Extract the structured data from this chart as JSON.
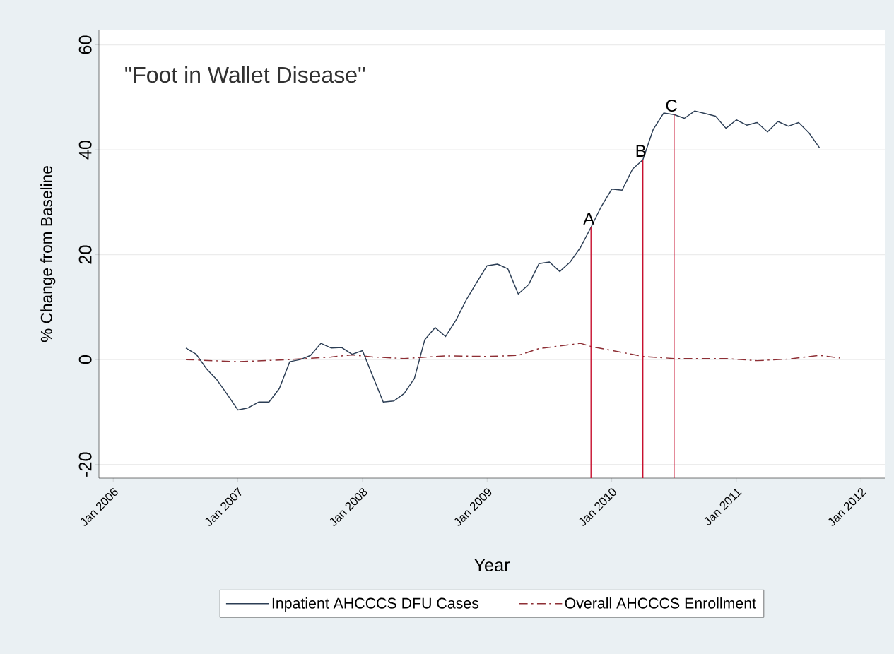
{
  "chart_data": {
    "type": "line",
    "xlabel": "Year",
    "ylabel": "% Change from Baseline",
    "xlim": [
      "2005-11-20",
      "2012-03-10"
    ],
    "ylim": [
      -22.6,
      62.9
    ],
    "xticks": [
      {
        "value": "2006-01",
        "label": "Jan 2006"
      },
      {
        "value": "2007-01",
        "label": "Jan 2007"
      },
      {
        "value": "2008-01",
        "label": "Jan 2008"
      },
      {
        "value": "2009-01",
        "label": "Jan 2009"
      },
      {
        "value": "2010-01",
        "label": "Jan 2010"
      },
      {
        "value": "2011-01",
        "label": "Jan 2011"
      },
      {
        "value": "2012-01",
        "label": "Jan 2012"
      }
    ],
    "yticks": [
      -20,
      0,
      20,
      40,
      60
    ],
    "grid": "y",
    "legend": "bottom",
    "marker": "none",
    "series": [
      {
        "name": "Inpatient AHCCCS DFU Cases",
        "color": "#2c3e55",
        "line_style": "solid",
        "x": [
          "2006-08",
          "2006-09",
          "2006-10",
          "2006-11",
          "2006-12",
          "2007-01",
          "2007-02",
          "2007-03",
          "2007-04",
          "2007-05",
          "2007-06",
          "2007-07",
          "2007-08",
          "2007-09",
          "2007-10",
          "2007-11",
          "2007-12",
          "2008-01",
          "2008-02",
          "2008-03",
          "2008-04",
          "2008-05",
          "2008-06",
          "2008-07",
          "2008-08",
          "2008-09",
          "2008-10",
          "2008-11",
          "2008-12",
          "2009-01",
          "2009-02",
          "2009-03",
          "2009-04",
          "2009-05",
          "2009-06",
          "2009-07",
          "2009-08",
          "2009-09",
          "2009-10",
          "2009-11",
          "2009-12",
          "2010-01",
          "2010-02",
          "2010-03",
          "2010-04",
          "2010-05",
          "2010-06",
          "2010-07",
          "2010-08",
          "2010-09",
          "2010-10",
          "2010-11",
          "2010-12",
          "2011-01",
          "2011-02",
          "2011-03",
          "2011-04",
          "2011-05",
          "2011-06",
          "2011-07",
          "2011-08",
          "2011-09"
        ],
        "values": [
          2.2,
          1.0,
          -1.8,
          -3.9,
          -6.7,
          -9.6,
          -9.2,
          -8.1,
          -8.1,
          -5.5,
          -0.4,
          0.0,
          0.8,
          3.1,
          2.2,
          2.3,
          1.0,
          1.7,
          -3.2,
          -8.1,
          -7.9,
          -6.5,
          -3.6,
          3.8,
          6.1,
          4.4,
          7.5,
          11.4,
          14.7,
          17.9,
          18.2,
          17.3,
          12.5,
          14.3,
          18.3,
          18.6,
          16.8,
          18.6,
          21.4,
          25.2,
          29.2,
          32.5,
          32.3,
          36.3,
          38.1,
          43.9,
          47.0,
          46.7,
          46.0,
          47.4,
          46.9,
          46.4,
          44.1,
          45.7,
          44.7,
          45.2,
          43.4,
          45.4,
          44.5,
          45.2,
          43.2,
          40.4
        ]
      },
      {
        "name": "Overall AHCCCS Enrollment",
        "color": "#8e2f35",
        "line_style": "dashdot",
        "x": [
          "2006-08",
          "2007-01",
          "2007-06",
          "2007-10",
          "2007-12",
          "2008-02",
          "2008-05",
          "2008-09",
          "2009-01",
          "2009-04",
          "2009-06",
          "2009-10",
          "2009-11",
          "2010-04",
          "2010-07",
          "2010-12",
          "2011-03",
          "2011-06",
          "2011-09",
          "2011-11"
        ],
        "values": [
          0.0,
          -0.4,
          0.0,
          0.5,
          0.9,
          0.5,
          0.2,
          0.7,
          0.6,
          0.8,
          2.1,
          3.1,
          2.5,
          0.6,
          0.2,
          0.2,
          -0.2,
          0.1,
          0.8,
          0.3
        ]
      }
    ],
    "ref_lines": [
      {
        "axis": "x",
        "value": "2009-11",
        "color": "#c8102e",
        "label": "A"
      },
      {
        "axis": "x",
        "value": "2010-04",
        "color": "#c8102e",
        "label": "B"
      },
      {
        "axis": "x",
        "value": "2010-07",
        "color": "#c8102e",
        "label": "C"
      }
    ],
    "annotations": [
      "\"Foot in Wallet Disease\""
    ]
  }
}
